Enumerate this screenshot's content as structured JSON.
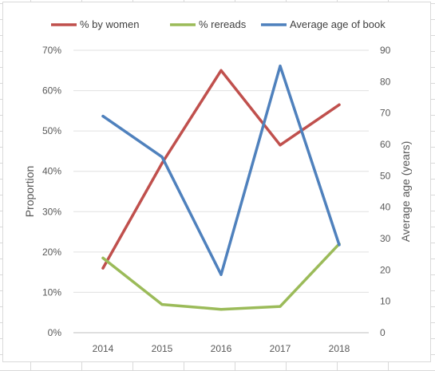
{
  "chart_data": {
    "type": "line",
    "categories": [
      "2014",
      "2015",
      "2016",
      "2017",
      "2018"
    ],
    "y_left": {
      "label": "Proportion",
      "range": [
        0,
        0.7
      ],
      "step": 0.1,
      "format": "percent"
    },
    "y_right": {
      "label": "Average age (years)",
      "range": [
        0,
        90
      ],
      "step": 10
    },
    "gridlines": true,
    "legend_position": "top",
    "series": [
      {
        "name": "% by women",
        "axis": "left",
        "color": "#c0504d",
        "values": [
          0.16,
          0.42,
          0.65,
          0.465,
          0.565
        ]
      },
      {
        "name": "% rereads",
        "axis": "left",
        "color": "#9bbb59",
        "values": [
          0.185,
          0.07,
          0.058,
          0.065,
          0.22
        ]
      },
      {
        "name": "Average age of book",
        "axis": "right",
        "color": "#4f81bd",
        "values": [
          69,
          56,
          18.5,
          85,
          28
        ]
      }
    ]
  }
}
